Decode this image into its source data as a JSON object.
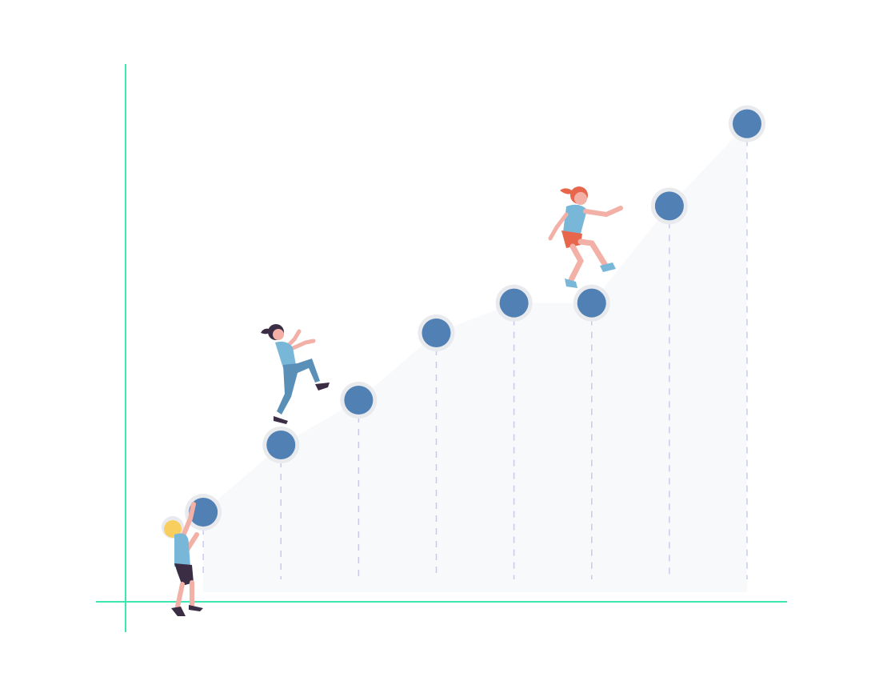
{
  "colors": {
    "axis": "#3ee6b0",
    "point": "#5080b4",
    "point_halo": "#e9eaee",
    "area": "#f8f9fa",
    "dropline": "#c9c9ee",
    "skin": "#f2b0a7",
    "shirt": "#79b7d8",
    "pants_dark": "#3a2d44",
    "hair_dark": "#3a2d44",
    "hair_orange": "#e8664c",
    "hair_blond": "#f8cf5e",
    "shorts_orange": "#e8664c",
    "shoe_blue": "#79b7d8",
    "pants_blue": "#5a8fb8"
  },
  "chart_data": {
    "type": "scatter",
    "title": "",
    "xlabel": "",
    "ylabel": "",
    "x": [
      1,
      2,
      3,
      4,
      5,
      6,
      7,
      8
    ],
    "y": [
      1.2,
      2.1,
      2.7,
      3.6,
      4.0,
      4.0,
      5.3,
      6.4
    ],
    "xlim": [
      0,
      8.7
    ],
    "ylim": [
      0,
      7.5
    ],
    "grid": false,
    "area_fill": true,
    "drop_lines": true,
    "figures": [
      "climber-bottom",
      "climber-middle",
      "climber-top"
    ]
  }
}
